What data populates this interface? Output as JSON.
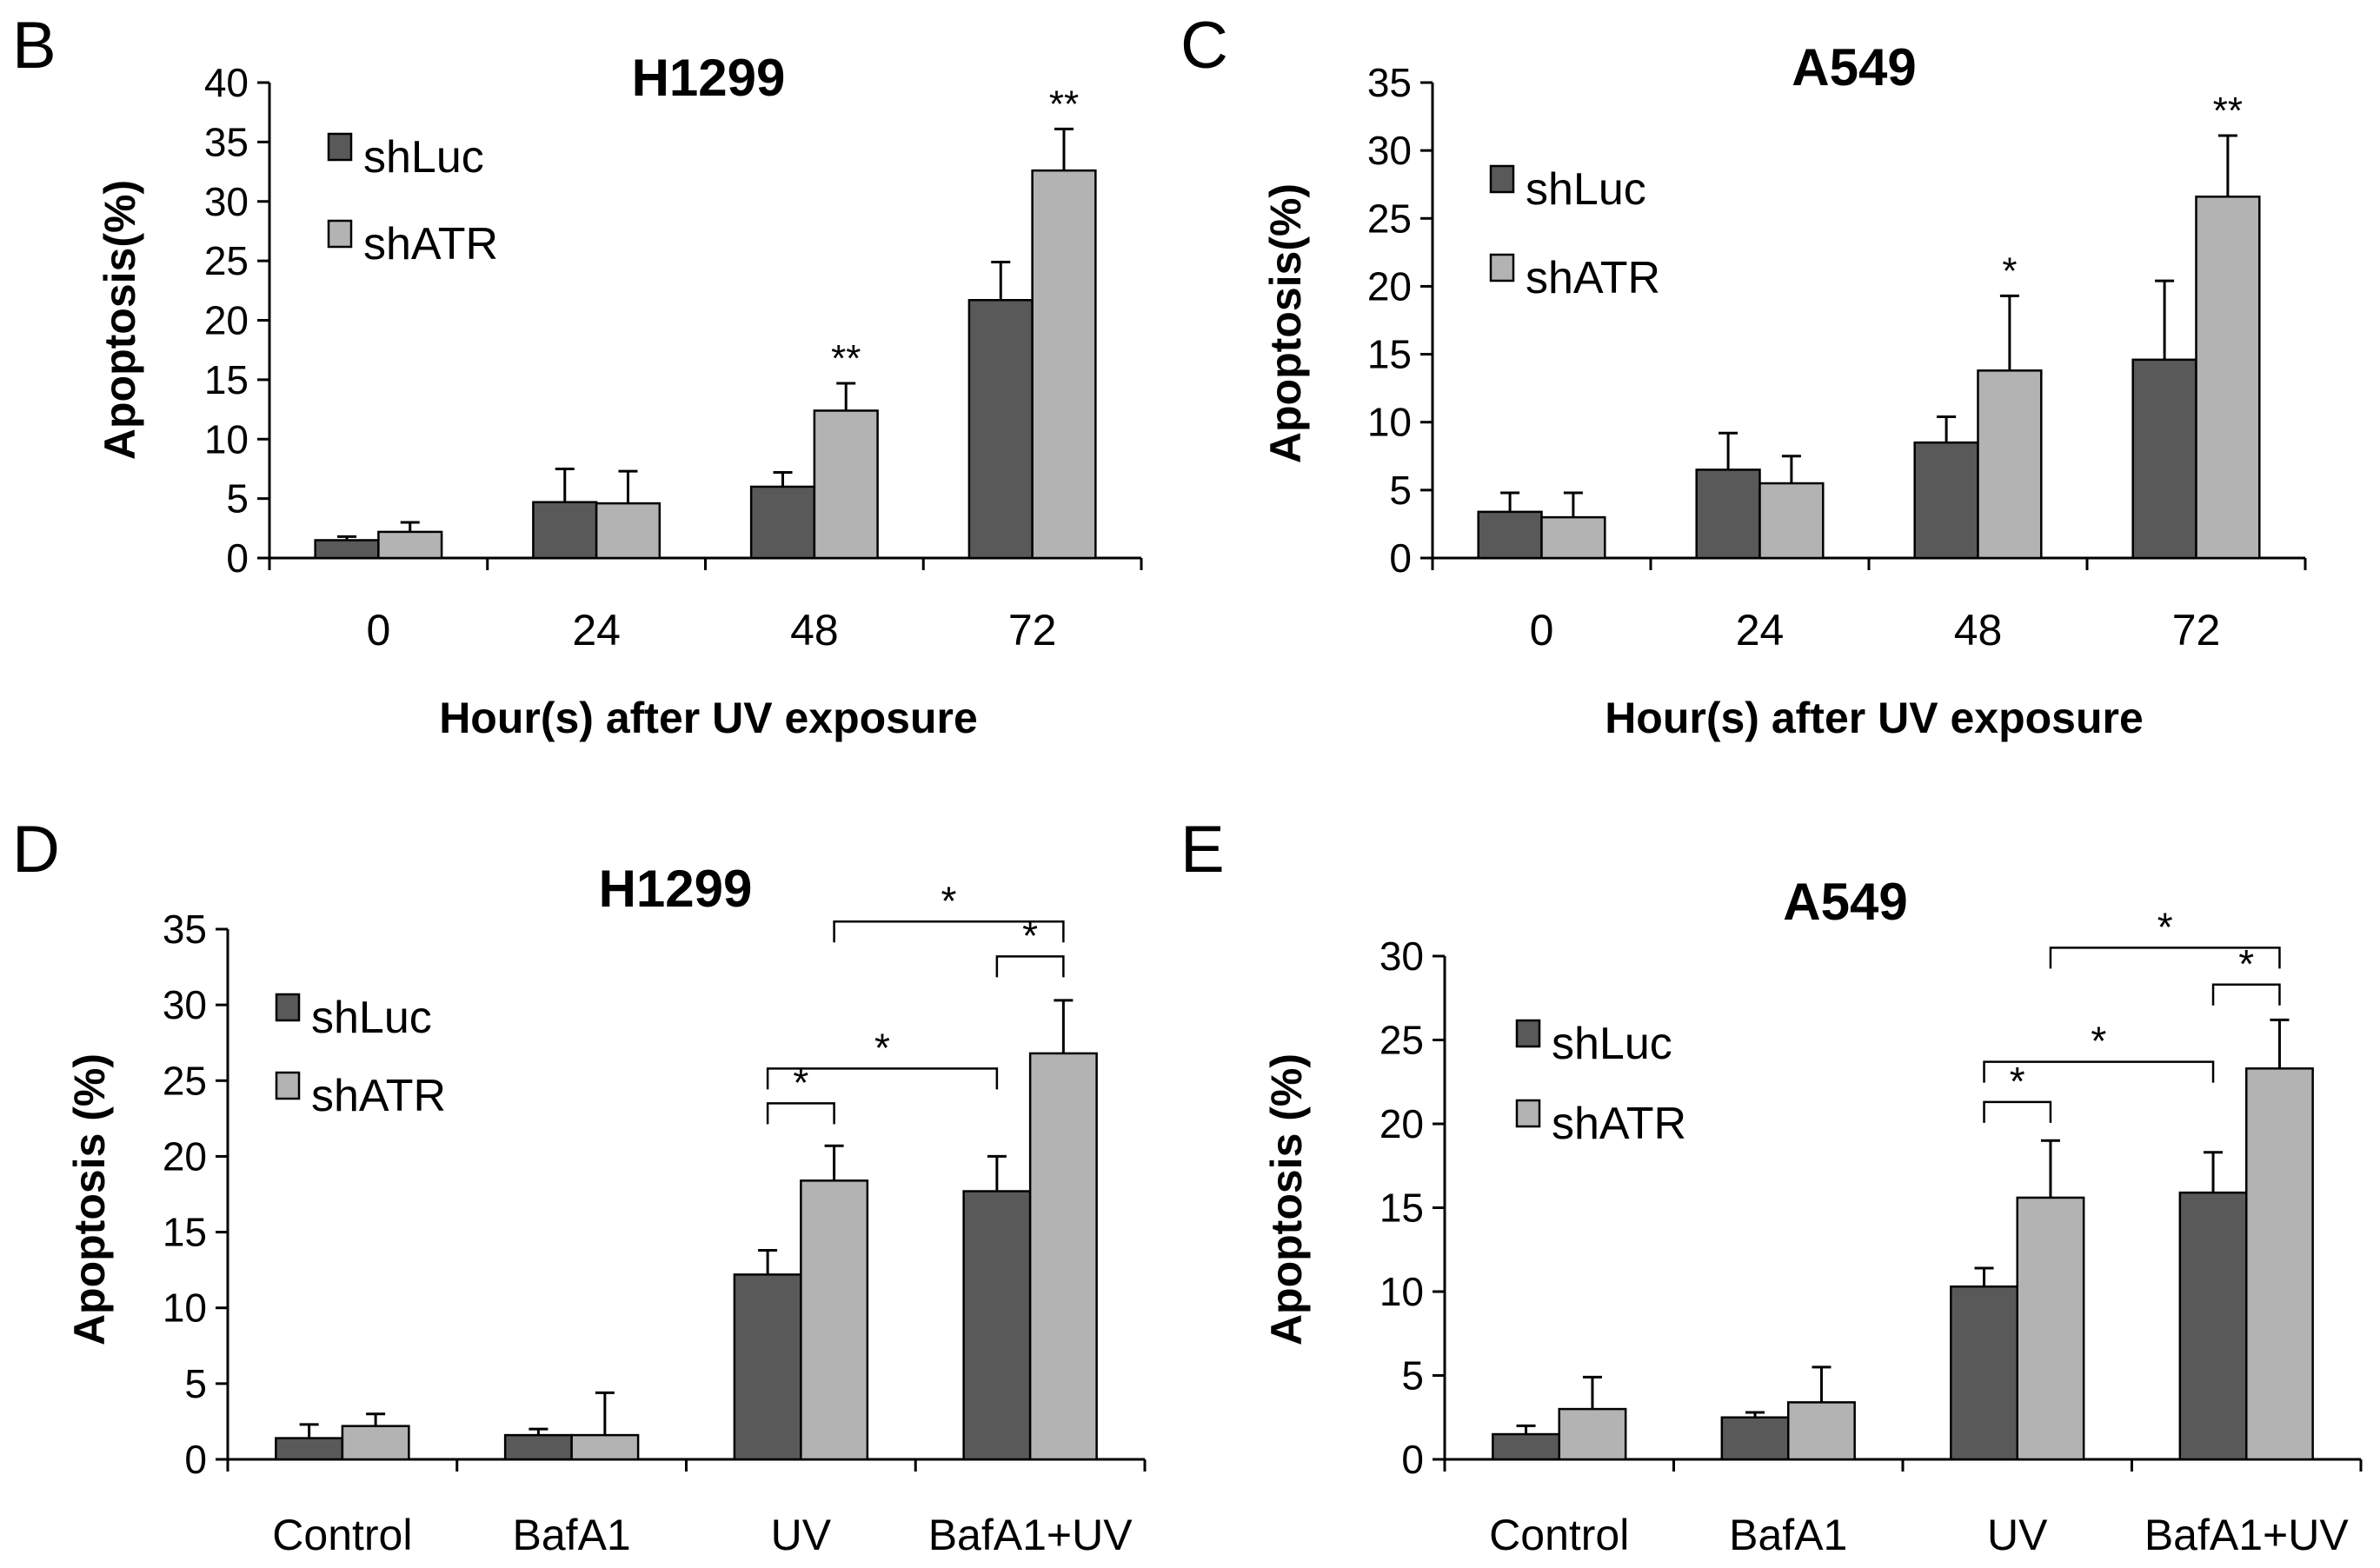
{
  "chart_data": [
    {
      "panel": "B",
      "type": "bar",
      "title": "H1299",
      "xlabel": "Hour(s) after UV exposure",
      "ylabel": "Apoptosis(%)",
      "ylim": [
        0,
        40
      ],
      "yticks": [
        0,
        5,
        10,
        15,
        20,
        25,
        30,
        35,
        40
      ],
      "categories": [
        "0",
        "24",
        "48",
        "72"
      ],
      "legend": "top-left",
      "series": [
        {
          "name": "shLuc",
          "color": "#595959",
          "values": [
            1.5,
            4.7,
            6.0,
            21.7
          ],
          "errors": [
            0.3,
            2.8,
            1.2,
            3.2
          ]
        },
        {
          "name": "shATR",
          "color": "#b3b3b3",
          "values": [
            2.2,
            4.6,
            12.4,
            32.6
          ],
          "errors": [
            0.8,
            2.7,
            2.3,
            3.5
          ]
        }
      ],
      "annotations": [
        {
          "category": 2,
          "series": 1,
          "text": "**"
        },
        {
          "category": 3,
          "series": 1,
          "text": "**"
        }
      ],
      "brackets": []
    },
    {
      "panel": "C",
      "type": "bar",
      "title": "A549",
      "xlabel": "Hour(s) after UV exposure",
      "ylabel": "Apoptosis(%)",
      "ylim": [
        0,
        35
      ],
      "yticks": [
        0,
        5,
        10,
        15,
        20,
        25,
        30,
        35
      ],
      "categories": [
        "0",
        "24",
        "48",
        "72"
      ],
      "legend": "top-left",
      "series": [
        {
          "name": "shLuc",
          "color": "#595959",
          "values": [
            3.4,
            6.5,
            8.5,
            14.6
          ],
          "errors": [
            1.4,
            2.7,
            1.9,
            5.8
          ]
        },
        {
          "name": "shATR",
          "color": "#b3b3b3",
          "values": [
            3.0,
            5.5,
            13.8,
            26.6
          ],
          "errors": [
            1.8,
            2.0,
            5.5,
            4.5
          ]
        }
      ],
      "annotations": [
        {
          "category": 2,
          "series": 1,
          "text": "*"
        },
        {
          "category": 3,
          "series": 1,
          "text": "**"
        }
      ],
      "brackets": []
    },
    {
      "panel": "D",
      "type": "bar",
      "title": "H1299",
      "xlabel": "",
      "ylabel": "Apoptosis (%)",
      "ylim": [
        0,
        35
      ],
      "yticks": [
        0,
        5,
        10,
        15,
        20,
        25,
        30,
        35
      ],
      "categories": [
        "Control",
        "BafA1",
        "UV",
        "BafA1+UV"
      ],
      "legend": "top-left",
      "series": [
        {
          "name": "shLuc",
          "color": "#595959",
          "values": [
            1.4,
            1.6,
            12.2,
            17.7
          ],
          "errors": [
            0.9,
            0.4,
            1.6,
            2.3
          ]
        },
        {
          "name": "shATR",
          "color": "#b3b3b3",
          "values": [
            2.2,
            1.6,
            18.4,
            26.8
          ],
          "errors": [
            0.8,
            2.8,
            2.3,
            3.5
          ]
        }
      ],
      "annotations": [],
      "brackets": [
        {
          "from": [
            2,
            0
          ],
          "to": [
            2,
            1
          ],
          "level": 23.5,
          "text": "*"
        },
        {
          "from": [
            2,
            0
          ],
          "to": [
            3,
            0
          ],
          "level": 25.8,
          "text": "*"
        },
        {
          "from": [
            3,
            0
          ],
          "to": [
            3,
            1
          ],
          "level": 33.2,
          "text": "*"
        },
        {
          "from": [
            2,
            1
          ],
          "to": [
            3,
            1
          ],
          "level": 35.5,
          "text": "*"
        }
      ]
    },
    {
      "panel": "E",
      "type": "bar",
      "title": "A549",
      "xlabel": "",
      "ylabel": "Apoptosis (%)",
      "ylim": [
        0,
        30
      ],
      "yticks": [
        0,
        5,
        10,
        15,
        20,
        25,
        30
      ],
      "categories": [
        "Control",
        "BafA1",
        "UV",
        "BafA1+UV"
      ],
      "legend": "top-left",
      "series": [
        {
          "name": "shLuc",
          "color": "#595959",
          "values": [
            1.5,
            2.5,
            10.3,
            15.9
          ],
          "errors": [
            0.5,
            0.3,
            1.1,
            2.4
          ]
        },
        {
          "name": "shATR",
          "color": "#b3b3b3",
          "values": [
            3.0,
            3.4,
            15.6,
            23.3
          ],
          "errors": [
            1.9,
            2.1,
            3.4,
            2.9
          ]
        }
      ],
      "annotations": [],
      "brackets": [
        {
          "from": [
            2,
            0
          ],
          "to": [
            2,
            1
          ],
          "level": 21.3,
          "text": "*"
        },
        {
          "from": [
            2,
            0
          ],
          "to": [
            3,
            0
          ],
          "level": 23.7,
          "text": "*"
        },
        {
          "from": [
            3,
            0
          ],
          "to": [
            3,
            1
          ],
          "level": 28.3,
          "text": "*"
        },
        {
          "from": [
            2,
            1
          ],
          "to": [
            3,
            1
          ],
          "level": 30.5,
          "text": "*"
        }
      ]
    }
  ]
}
